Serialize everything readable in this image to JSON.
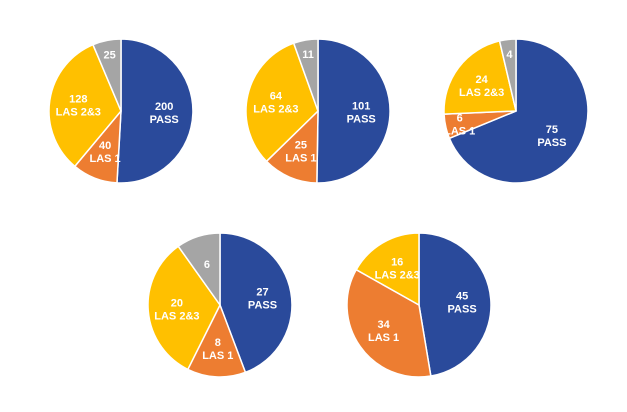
{
  "colors": {
    "PASS": "#2A4A9B",
    "LAS 1": "#ED7D31",
    "LAS 2&3": "#FFC000",
    "other": "#A5A5A5"
  },
  "chart_data": [
    {
      "type": "pie",
      "title": "",
      "slices": [
        {
          "label": "PASS",
          "value": 200
        },
        {
          "label": "LAS 1",
          "value": 40
        },
        {
          "label": "LAS 2&3",
          "value": 128
        },
        {
          "label": "",
          "value": 25,
          "color_key": "other"
        }
      ]
    },
    {
      "type": "pie",
      "title": "",
      "slices": [
        {
          "label": "PASS",
          "value": 101
        },
        {
          "label": "LAS 1",
          "value": 25
        },
        {
          "label": "LAS 2&3",
          "value": 64
        },
        {
          "label": "",
          "value": 11,
          "color_key": "other"
        }
      ]
    },
    {
      "type": "pie",
      "title": "",
      "slices": [
        {
          "label": "PASS",
          "value": 75
        },
        {
          "label": "LAS 1",
          "value": 6
        },
        {
          "label": "LAS 2&3",
          "value": 24
        },
        {
          "label": "",
          "value": 4,
          "color_key": "other"
        }
      ]
    },
    {
      "type": "pie",
      "title": "",
      "slices": [
        {
          "label": "PASS",
          "value": 27
        },
        {
          "label": "LAS 1",
          "value": 8
        },
        {
          "label": "LAS 2&3",
          "value": 20
        },
        {
          "label": "",
          "value": 6,
          "color_key": "other"
        }
      ]
    },
    {
      "type": "pie",
      "title": "",
      "slices": [
        {
          "label": "PASS",
          "value": 45
        },
        {
          "label": "LAS 1",
          "value": 34
        },
        {
          "label": "LAS 2&3",
          "value": 16
        }
      ]
    }
  ]
}
